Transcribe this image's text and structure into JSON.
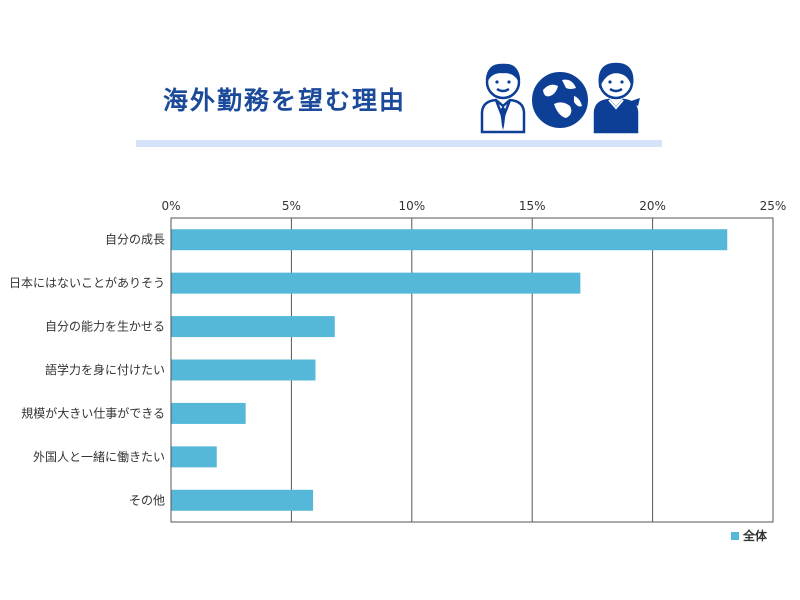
{
  "title": "海外勤務を望む理由",
  "colors": {
    "bar": "#55b8d9",
    "title": "#1b4a9a",
    "rule": "#d4e3f8",
    "grid": "#555555",
    "icon": "#0d3f96"
  },
  "icons": [
    "businessman-icon",
    "globe-icon",
    "businesswoman-icon"
  ],
  "chart_data": {
    "type": "bar",
    "orientation": "horizontal",
    "categories": [
      "自分の成長",
      "日本にはないことがありそう",
      "自分の能力を生かせる",
      "語学力を身に付けたい",
      "規模が大きい仕事ができる",
      "外国人と一緒に働きたい",
      "その他"
    ],
    "series": [
      {
        "name": "全体",
        "values": [
          23.1,
          17.0,
          6.8,
          6.0,
          3.1,
          1.9,
          5.9
        ]
      }
    ],
    "xlim": [
      0,
      25
    ],
    "ticks": [
      "0%",
      "5%",
      "10%",
      "15%",
      "20%",
      "25%"
    ],
    "tick_values": [
      0,
      5,
      10,
      15,
      20,
      25
    ],
    "grid": true,
    "legend": "bottom-right"
  }
}
